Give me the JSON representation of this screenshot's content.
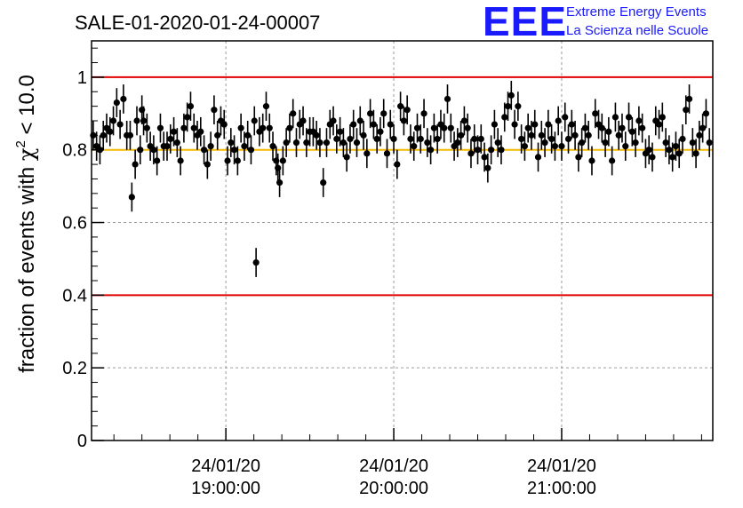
{
  "header": {
    "run_title": "SALE-01-2020-01-24-00007",
    "logo_mark": "EEE",
    "logo_line1": "Extreme Energy Events",
    "logo_line2": "La Scienza nelle Scuole",
    "logo_color": "#1a1aff"
  },
  "chart_data": {
    "type": "scatter",
    "ylabel": "fraction of events with χ² < 10.0",
    "ylabel_parts": {
      "main": "fraction of events with ",
      "chi": "χ",
      "sup": "2",
      "rest": " < 10.0"
    },
    "ylim": [
      0,
      1.1
    ],
    "yticks": [
      0,
      0.2,
      0.4,
      0.6,
      0.8,
      1
    ],
    "ytick_labels": [
      "0",
      "0.2",
      "0.4",
      "0.6",
      "0.8",
      "1"
    ],
    "x_range_hours": [
      18.2,
      21.9
    ],
    "x_axis_reference_date": "24/01/20",
    "xtick_hours": [
      19,
      20,
      21
    ],
    "xtick_labels": [
      {
        "date": "24/01/20",
        "time": "19:00:00"
      },
      {
        "date": "24/01/20",
        "time": "20:00:00"
      },
      {
        "date": "24/01/20",
        "time": "21:00:00"
      }
    ],
    "grid": true,
    "reference_lines": [
      {
        "y": 1.0,
        "color": "#e00000"
      },
      {
        "y": 0.8,
        "color": "#f5b800"
      },
      {
        "y": 0.4,
        "color": "#e00000"
      }
    ],
    "marker_color": "#000000",
    "error_bar_half_width": 0.04,
    "points": [
      [
        18.21,
        0.84
      ],
      [
        18.23,
        0.81
      ],
      [
        18.25,
        0.8
      ],
      [
        18.27,
        0.84
      ],
      [
        18.29,
        0.86
      ],
      [
        18.31,
        0.85
      ],
      [
        18.33,
        0.88
      ],
      [
        18.35,
        0.93
      ],
      [
        18.37,
        0.87
      ],
      [
        18.39,
        0.94
      ],
      [
        18.41,
        0.84
      ],
      [
        18.43,
        0.84
      ],
      [
        18.44,
        0.67
      ],
      [
        18.46,
        0.76
      ],
      [
        18.47,
        0.88
      ],
      [
        18.49,
        0.8
      ],
      [
        18.5,
        0.91
      ],
      [
        18.51,
        0.88
      ],
      [
        18.53,
        0.86
      ],
      [
        18.55,
        0.81
      ],
      [
        18.57,
        0.8
      ],
      [
        18.59,
        0.77
      ],
      [
        18.61,
        0.86
      ],
      [
        18.63,
        0.81
      ],
      [
        18.65,
        0.81
      ],
      [
        18.67,
        0.83
      ],
      [
        18.69,
        0.85
      ],
      [
        18.71,
        0.82
      ],
      [
        18.73,
        0.77
      ],
      [
        18.75,
        0.86
      ],
      [
        18.77,
        0.89
      ],
      [
        18.79,
        0.92
      ],
      [
        18.81,
        0.86
      ],
      [
        18.83,
        0.84
      ],
      [
        18.85,
        0.85
      ],
      [
        18.87,
        0.8
      ],
      [
        18.89,
        0.76
      ],
      [
        18.91,
        0.81
      ],
      [
        18.93,
        0.91
      ],
      [
        18.95,
        0.84
      ],
      [
        18.97,
        0.88
      ],
      [
        18.99,
        0.87
      ],
      [
        19.01,
        0.77
      ],
      [
        19.03,
        0.82
      ],
      [
        19.05,
        0.8
      ],
      [
        19.07,
        0.77
      ],
      [
        19.09,
        0.86
      ],
      [
        19.11,
        0.81
      ],
      [
        19.13,
        0.84
      ],
      [
        19.15,
        0.8
      ],
      [
        19.17,
        0.88
      ],
      [
        19.18,
        0.49
      ],
      [
        19.2,
        0.85
      ],
      [
        19.22,
        0.86
      ],
      [
        19.24,
        0.92
      ],
      [
        19.26,
        0.86
      ],
      [
        19.28,
        0.81
      ],
      [
        19.3,
        0.77
      ],
      [
        19.31,
        0.75
      ],
      [
        19.32,
        0.71
      ],
      [
        19.34,
        0.77
      ],
      [
        19.36,
        0.82
      ],
      [
        19.38,
        0.86
      ],
      [
        19.4,
        0.9
      ],
      [
        19.42,
        0.82
      ],
      [
        19.44,
        0.87
      ],
      [
        19.46,
        0.88
      ],
      [
        19.48,
        0.82
      ],
      [
        19.5,
        0.85
      ],
      [
        19.52,
        0.85
      ],
      [
        19.54,
        0.84
      ],
      [
        19.56,
        0.82
      ],
      [
        19.58,
        0.71
      ],
      [
        19.6,
        0.82
      ],
      [
        19.62,
        0.87
      ],
      [
        19.64,
        0.88
      ],
      [
        19.66,
        0.83
      ],
      [
        19.68,
        0.85
      ],
      [
        19.7,
        0.82
      ],
      [
        19.72,
        0.78
      ],
      [
        19.74,
        0.83
      ],
      [
        19.76,
        0.87
      ],
      [
        19.78,
        0.82
      ],
      [
        19.8,
        0.88
      ],
      [
        19.82,
        0.84
      ],
      [
        19.84,
        0.79
      ],
      [
        19.86,
        0.9
      ],
      [
        19.88,
        0.87
      ],
      [
        19.9,
        0.83
      ],
      [
        19.92,
        0.85
      ],
      [
        19.94,
        0.9
      ],
      [
        19.96,
        0.79
      ],
      [
        19.98,
        0.87
      ],
      [
        20.0,
        0.83
      ],
      [
        20.02,
        0.76
      ],
      [
        20.04,
        0.92
      ],
      [
        20.06,
        0.88
      ],
      [
        20.08,
        0.91
      ],
      [
        20.1,
        0.83
      ],
      [
        20.12,
        0.81
      ],
      [
        20.14,
        0.86
      ],
      [
        20.16,
        0.83
      ],
      [
        20.18,
        0.9
      ],
      [
        20.2,
        0.82
      ],
      [
        20.22,
        0.8
      ],
      [
        20.24,
        0.86
      ],
      [
        20.26,
        0.83
      ],
      [
        20.28,
        0.87
      ],
      [
        20.3,
        0.86
      ],
      [
        20.32,
        0.94
      ],
      [
        20.34,
        0.86
      ],
      [
        20.36,
        0.81
      ],
      [
        20.38,
        0.82
      ],
      [
        20.4,
        0.84
      ],
      [
        20.42,
        0.88
      ],
      [
        20.44,
        0.86
      ],
      [
        20.46,
        0.79
      ],
      [
        20.48,
        0.83
      ],
      [
        20.5,
        0.8
      ],
      [
        20.52,
        0.83
      ],
      [
        20.54,
        0.78
      ],
      [
        20.56,
        0.75
      ],
      [
        20.58,
        0.8
      ],
      [
        20.6,
        0.87
      ],
      [
        20.62,
        0.82
      ],
      [
        20.64,
        0.8
      ],
      [
        20.66,
        0.89
      ],
      [
        20.68,
        0.92
      ],
      [
        20.7,
        0.95
      ],
      [
        20.72,
        0.87
      ],
      [
        20.74,
        0.92
      ],
      [
        20.76,
        0.83
      ],
      [
        20.78,
        0.81
      ],
      [
        20.8,
        0.86
      ],
      [
        20.82,
        0.84
      ],
      [
        20.84,
        0.87
      ],
      [
        20.86,
        0.78
      ],
      [
        20.88,
        0.84
      ],
      [
        20.9,
        0.82
      ],
      [
        20.92,
        0.87
      ],
      [
        20.94,
        0.83
      ],
      [
        20.96,
        0.81
      ],
      [
        20.98,
        0.88
      ],
      [
        21.0,
        0.81
      ],
      [
        21.02,
        0.89
      ],
      [
        21.04,
        0.83
      ],
      [
        21.06,
        0.87
      ],
      [
        21.08,
        0.84
      ],
      [
        21.1,
        0.78
      ],
      [
        21.12,
        0.82
      ],
      [
        21.14,
        0.86
      ],
      [
        21.16,
        0.84
      ],
      [
        21.18,
        0.77
      ],
      [
        21.2,
        0.9
      ],
      [
        21.22,
        0.87
      ],
      [
        21.24,
        0.86
      ],
      [
        21.26,
        0.82
      ],
      [
        21.28,
        0.85
      ],
      [
        21.3,
        0.77
      ],
      [
        21.32,
        0.89
      ],
      [
        21.34,
        0.84
      ],
      [
        21.36,
        0.86
      ],
      [
        21.38,
        0.81
      ],
      [
        21.4,
        0.89
      ],
      [
        21.42,
        0.85
      ],
      [
        21.44,
        0.82
      ],
      [
        21.46,
        0.88
      ],
      [
        21.48,
        0.86
      ],
      [
        21.5,
        0.79
      ],
      [
        21.52,
        0.8
      ],
      [
        21.54,
        0.78
      ],
      [
        21.56,
        0.88
      ],
      [
        21.58,
        0.87
      ],
      [
        21.6,
        0.89
      ],
      [
        21.62,
        0.82
      ],
      [
        21.64,
        0.8
      ],
      [
        21.66,
        0.78
      ],
      [
        21.68,
        0.81
      ],
      [
        21.7,
        0.79
      ],
      [
        21.72,
        0.83
      ],
      [
        21.74,
        0.91
      ],
      [
        21.76,
        0.94
      ],
      [
        21.78,
        0.82
      ],
      [
        21.8,
        0.79
      ],
      [
        21.82,
        0.84
      ],
      [
        21.84,
        0.86
      ],
      [
        21.86,
        0.9
      ],
      [
        21.88,
        0.82
      ]
    ]
  }
}
